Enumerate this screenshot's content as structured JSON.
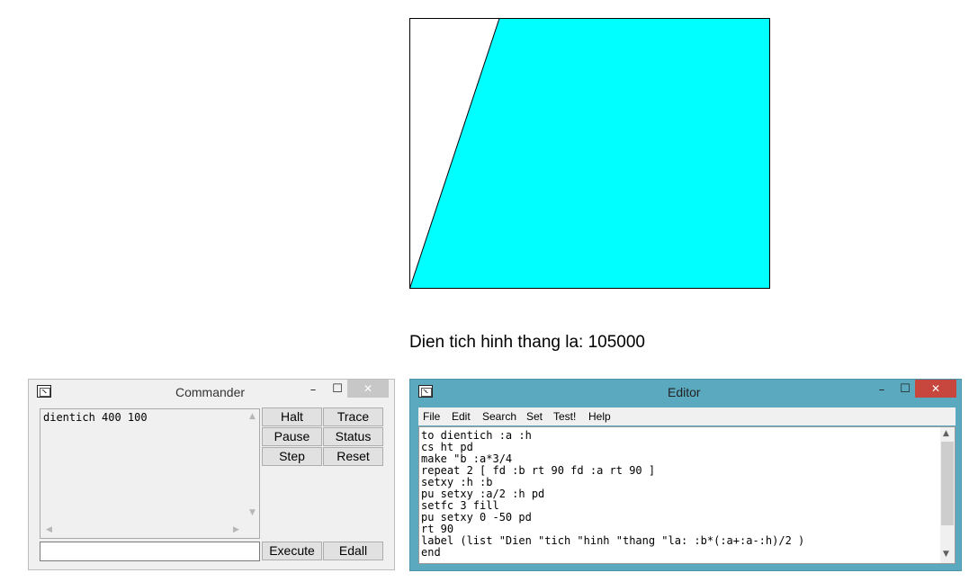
{
  "canvas": {
    "name": "turtle-canvas",
    "fill_color": "#00ffff",
    "stroke_color": "#000000"
  },
  "result_label": "Dien tich hinh thang la: 105000",
  "commander": {
    "title": "Commander",
    "history": "dientich 400 100",
    "input_value": "",
    "buttons": {
      "halt": "Halt",
      "trace": "Trace",
      "pause": "Pause",
      "status": "Status",
      "step": "Step",
      "reset": "Reset",
      "execute": "Execute",
      "edall": "Edall"
    }
  },
  "editor": {
    "title": "Editor",
    "menu": [
      "File",
      "Edit",
      "Search",
      "Set",
      "Test!",
      "Help"
    ],
    "code_lines": [
      "to dientich :a :h",
      "cs ht pd",
      "make \"b :a*3/4",
      "repeat 2 [ fd :b rt 90 fd :a rt 90 ]",
      "setxy :h :b",
      "pu setxy :a/2 :h pd",
      "setfc 3 fill",
      "pu setxy 0 -50 pd",
      "rt 90",
      "label (list \"Dien \"tich \"hinh \"thang \"la: :b*(:a+:a-:h)/2 )",
      "end"
    ]
  },
  "window_controls": {
    "minimize": "–",
    "maximize": "☐",
    "close": "✕"
  },
  "colors": {
    "editor_frame": "#5aa9bf",
    "editor_close": "#c7463e",
    "commander_close": "#c7c7c7"
  },
  "icons": {
    "window": "app-window-icon"
  }
}
